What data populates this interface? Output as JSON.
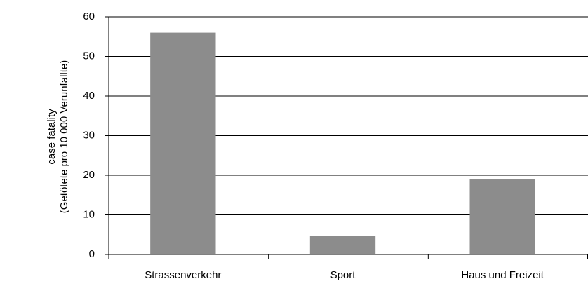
{
  "chart_data": {
    "type": "bar",
    "ylabel": [
      "case fatality",
      "(Getötete pro 10 000 Verunfallte)"
    ],
    "categories": [
      "Strassenverkehr",
      "Sport",
      "Haus und Freizeit"
    ],
    "values": [
      56,
      4.6,
      19
    ],
    "color": "#8c8c8c",
    "ylim": [
      0,
      60
    ],
    "yticks": [
      0,
      10,
      20,
      30,
      40,
      50,
      60
    ],
    "grid": true
  }
}
